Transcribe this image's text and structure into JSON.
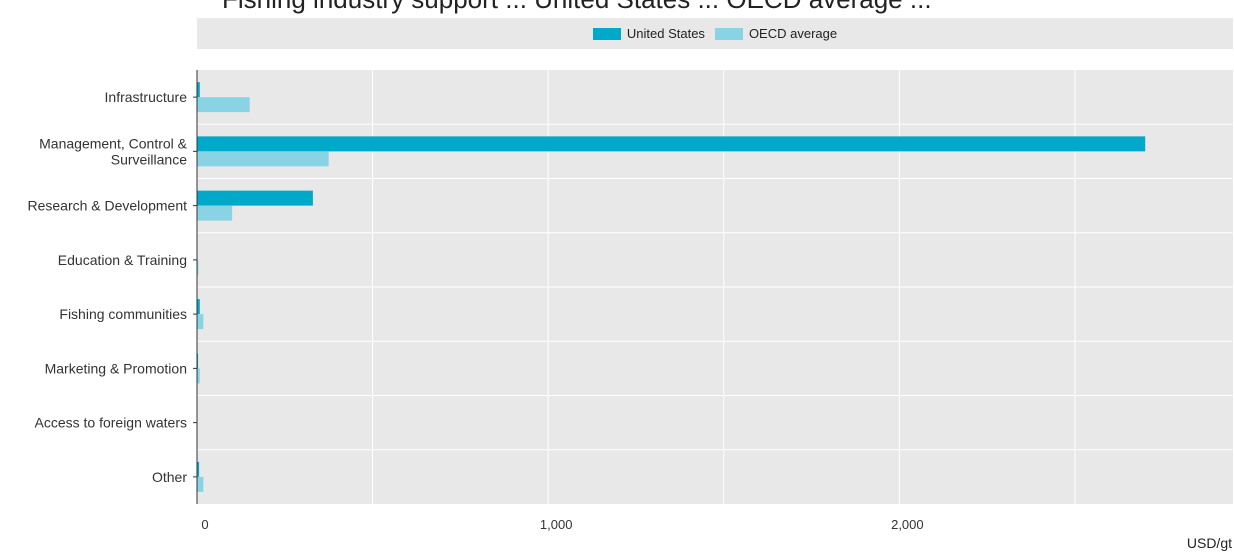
{
  "title": "Fishing industry support ... United States ... OECD average ...",
  "colors": {
    "us": "#00a9c9",
    "oecd": "#8ad3e5",
    "panel": "#e8e8e8",
    "grid": "#ffffff"
  },
  "chart_data": {
    "type": "bar",
    "orientation": "horizontal",
    "categories": [
      [
        "Infrastructure"
      ],
      [
        "Management, Control &",
        "Surveillance"
      ],
      [
        "Research & Development"
      ],
      [
        "Education & Training"
      ],
      [
        "Fishing communities"
      ],
      [
        "Marketing & Promotion"
      ],
      [
        "Access to foreign waters"
      ],
      [
        "Other"
      ]
    ],
    "series": [
      {
        "name": "United States",
        "values": [
          8,
          2700,
          330,
          1,
          8,
          3,
          0,
          6
        ]
      },
      {
        "name": "OECD average",
        "values": [
          150,
          375,
          100,
          4,
          18,
          8,
          0,
          18
        ]
      }
    ],
    "xlim": [
      0,
      2950
    ],
    "xticks": [
      0,
      1000,
      2000
    ],
    "xtick_labels": [
      "0",
      "1,000",
      "2,000"
    ],
    "minor_gridlines": [
      500,
      1500,
      2500
    ],
    "xlabel": "USD/gt",
    "grid": true,
    "legend_position": "top"
  }
}
